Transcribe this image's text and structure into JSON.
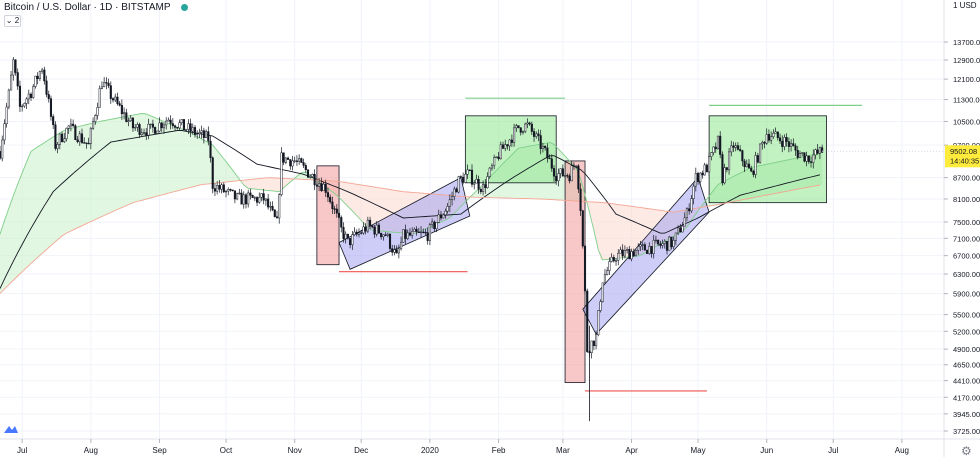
{
  "header": {
    "title": "Bitcoin / U.S. Dollar · 1D · BITSTAMP",
    "collapse_label": "2"
  },
  "price_scale": {
    "currency": "USD",
    "scale_mode": "log",
    "ticks": [
      "13700.00",
      "12900.00",
      "12100.00",
      "11300.00",
      "10500.00",
      "9700.00",
      "8700.00",
      "8100.00",
      "7500.00",
      "7100.00",
      "6700.00",
      "6300.00",
      "5900.00",
      "5500.00",
      "5200.00",
      "4900.00",
      "4650.00",
      "4410.00",
      "4170.00",
      "3945.00",
      "3725.00"
    ],
    "last_price": "9502.08",
    "countdown": "14:40:35",
    "top_partial": "1"
  },
  "time_axis": {
    "labels": [
      "Jul",
      "Aug",
      "Sep",
      "Oct",
      "Nov",
      "Dec",
      "2020",
      "Feb",
      "Mar",
      "Apr",
      "May",
      "Jun",
      "Jul",
      "Aug"
    ]
  },
  "colors": {
    "up": "#26a69a",
    "down": "#ef5350",
    "candle": "#131722",
    "ma_fast": "#7fcf8a",
    "ma_mid": "#131722",
    "ma_slow": "#f4a693",
    "green_box": "#8fe68f",
    "red_box": "#f29a9a",
    "blue_box": "#9b9cf0",
    "last_price_bg": "#ffeb3b"
  },
  "chart_data": {
    "type": "candlestick",
    "instrument": "Bitcoin / U.S. Dollar",
    "interval": "1D",
    "exchange": "BITSTAMP",
    "x_range": [
      "2019-06-21",
      "2020-08-20"
    ],
    "y_range": [
      3600,
      15000
    ],
    "y_scale": "log",
    "close_path": [
      [
        "2019-06-21",
        9500
      ],
      [
        "2019-06-25",
        11500
      ],
      [
        "2019-06-27",
        12800
      ],
      [
        "2019-06-30",
        11000
      ],
      [
        "2019-07-05",
        11600
      ],
      [
        "2019-07-10",
        12600
      ],
      [
        "2019-07-16",
        9700
      ],
      [
        "2019-07-22",
        10300
      ],
      [
        "2019-07-31",
        9700
      ],
      [
        "2019-08-06",
        12000
      ],
      [
        "2019-08-12",
        11200
      ],
      [
        "2019-08-20",
        10300
      ],
      [
        "2019-08-28",
        10200
      ],
      [
        "2019-09-05",
        10600
      ],
      [
        "2019-09-12",
        10300
      ],
      [
        "2019-09-23",
        9900
      ],
      [
        "2019-09-25",
        8500
      ],
      [
        "2019-10-06",
        8100
      ],
      [
        "2019-10-18",
        8100
      ],
      [
        "2019-10-24",
        7450
      ],
      [
        "2019-10-26",
        9300
      ],
      [
        "2019-11-01",
        9200
      ],
      [
        "2019-11-08",
        8800
      ],
      [
        "2019-11-15",
        8400
      ],
      [
        "2019-11-22",
        7300
      ],
      [
        "2019-11-25",
        7000
      ],
      [
        "2019-12-04",
        7400
      ],
      [
        "2019-12-12",
        7200
      ],
      [
        "2019-12-17",
        6650
      ],
      [
        "2019-12-20",
        7150
      ],
      [
        "2019-12-31",
        7200
      ],
      [
        "2020-01-09",
        7900
      ],
      [
        "2020-01-14",
        8600
      ],
      [
        "2020-01-18",
        8800
      ],
      [
        "2020-01-25",
        8400
      ],
      [
        "2020-02-01",
        9400
      ],
      [
        "2020-02-10",
        10300
      ],
      [
        "2020-02-14",
        10350
      ],
      [
        "2020-02-20",
        9700
      ],
      [
        "2020-02-27",
        8800
      ],
      [
        "2020-03-04",
        8800
      ],
      [
        "2020-03-07",
        9200
      ],
      [
        "2020-03-09",
        7900
      ],
      [
        "2020-03-12",
        4900
      ],
      [
        "2020-03-16",
        5100
      ],
      [
        "2020-03-19",
        6200
      ],
      [
        "2020-03-25",
        6700
      ],
      [
        "2020-04-02",
        6800
      ],
      [
        "2020-04-10",
        6900
      ],
      [
        "2020-04-20",
        7000
      ],
      [
        "2020-04-26",
        7700
      ],
      [
        "2020-04-30",
        8700
      ],
      [
        "2020-05-05",
        9000
      ],
      [
        "2020-05-10",
        9800
      ],
      [
        "2020-05-12",
        8700
      ],
      [
        "2020-05-17",
        9700
      ],
      [
        "2020-05-25",
        8800
      ],
      [
        "2020-06-01",
        10100
      ],
      [
        "2020-06-10",
        9800
      ],
      [
        "2020-06-15",
        9450
      ],
      [
        "2020-06-20",
        9300
      ],
      [
        "2020-06-26",
        9502
      ]
    ],
    "moving_averages": [
      {
        "color": "#7fcf8a",
        "points": [
          [
            "2019-06-21",
            7200
          ],
          [
            "2019-07-05",
            9500
          ],
          [
            "2019-07-20",
            10200
          ],
          [
            "2019-08-05",
            10500
          ],
          [
            "2019-08-25",
            10800
          ],
          [
            "2019-09-15",
            10100
          ],
          [
            "2019-09-25",
            9700
          ],
          [
            "2019-10-10",
            8400
          ],
          [
            "2019-10-25",
            8300
          ],
          [
            "2019-11-05",
            8900
          ],
          [
            "2019-11-20",
            8200
          ],
          [
            "2019-12-05",
            7300
          ],
          [
            "2019-12-25",
            7200
          ],
          [
            "2020-01-10",
            7600
          ],
          [
            "2020-01-25",
            8500
          ],
          [
            "2020-02-10",
            9600
          ],
          [
            "2020-02-25",
            9800
          ],
          [
            "2020-03-08",
            8900
          ],
          [
            "2020-03-18",
            6600
          ],
          [
            "2020-04-05",
            6700
          ],
          [
            "2020-04-25",
            7300
          ],
          [
            "2020-05-10",
            8500
          ],
          [
            "2020-05-25",
            9000
          ],
          [
            "2020-06-26",
            9450
          ]
        ]
      },
      {
        "color": "#131722",
        "points": [
          [
            "2019-06-21",
            6000
          ],
          [
            "2019-07-15",
            8300
          ],
          [
            "2019-08-10",
            9800
          ],
          [
            "2019-09-10",
            10200
          ],
          [
            "2019-09-25",
            10000
          ],
          [
            "2019-10-15",
            9100
          ],
          [
            "2019-11-05",
            8800
          ],
          [
            "2019-11-25",
            8300
          ],
          [
            "2019-12-20",
            7600
          ],
          [
            "2020-01-15",
            7700
          ],
          [
            "2020-02-05",
            8600
          ],
          [
            "2020-02-25",
            9400
          ],
          [
            "2020-03-10",
            8900
          ],
          [
            "2020-03-25",
            7700
          ],
          [
            "2020-04-15",
            7200
          ],
          [
            "2020-05-01",
            7600
          ],
          [
            "2020-05-20",
            8200
          ],
          [
            "2020-06-26",
            8800
          ]
        ]
      },
      {
        "color": "#f4a693",
        "points": [
          [
            "2019-06-21",
            5900
          ],
          [
            "2019-07-20",
            7200
          ],
          [
            "2019-08-20",
            8000
          ],
          [
            "2019-09-20",
            8500
          ],
          [
            "2019-10-20",
            8700
          ],
          [
            "2019-11-20",
            8600
          ],
          [
            "2019-12-20",
            8300
          ],
          [
            "2020-01-20",
            8150
          ],
          [
            "2020-02-20",
            8100
          ],
          [
            "2020-03-20",
            8000
          ],
          [
            "2020-04-20",
            7750
          ],
          [
            "2020-05-10",
            7950
          ],
          [
            "2020-06-26",
            8500
          ]
        ]
      }
    ],
    "annotations": [
      {
        "kind": "rect",
        "color": "#f29a9a",
        "x": [
          "2019-11-11",
          "2019-11-21"
        ],
        "y": [
          6500,
          9050
        ]
      },
      {
        "kind": "rect",
        "color": "#8fe68f",
        "x": [
          "2020-01-17",
          "2020-02-27"
        ],
        "y": [
          8550,
          10700
        ]
      },
      {
        "kind": "rect",
        "color": "#f29a9a",
        "x": [
          "2020-03-02",
          "2020-03-11"
        ],
        "y": [
          4380,
          9200
        ]
      },
      {
        "kind": "rect",
        "color": "#8fe68f",
        "x": [
          "2020-05-06",
          "2020-06-28"
        ],
        "y": [
          8000,
          10700
        ]
      },
      {
        "kind": "parallelogram",
        "color": "#9b9cf0",
        "points": [
          [
            "2019-11-21",
            7000
          ],
          [
            "2020-01-15",
            8700
          ],
          [
            "2020-01-19",
            7650
          ],
          [
            "2019-11-26",
            6400
          ]
        ]
      },
      {
        "kind": "parallelogram",
        "color": "#9b9cf0",
        "points": [
          [
            "2020-03-10",
            5600
          ],
          [
            "2020-05-01",
            8700
          ],
          [
            "2020-05-06",
            7750
          ],
          [
            "2020-03-16",
            5150
          ]
        ]
      },
      {
        "kind": "hline",
        "color": "#ef5350",
        "x": [
          "2019-11-21",
          "2020-01-18"
        ],
        "y": 6350
      },
      {
        "kind": "hline",
        "color": "#7fcf8a",
        "x": [
          "2020-01-17",
          "2020-03-02"
        ],
        "y": 11350
      },
      {
        "kind": "hline",
        "color": "#ef5350",
        "x": [
          "2020-03-11",
          "2020-05-05"
        ],
        "y": 4260
      },
      {
        "kind": "hline",
        "color": "#7fcf8a",
        "x": [
          "2020-05-06",
          "2020-07-14"
        ],
        "y": 11080
      }
    ]
  }
}
